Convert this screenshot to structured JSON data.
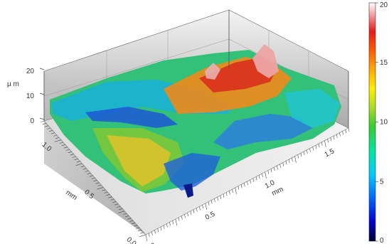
{
  "chart_data": {
    "type": "heatmap",
    "subtype": "3d-surface-topography",
    "title": "",
    "x_axis": {
      "label": "mm",
      "ticks": [
        "0.0",
        "0.5",
        "1.0",
        "1.5"
      ],
      "range": [
        0,
        1.7
      ]
    },
    "y_axis": {
      "label": "mm",
      "ticks": [
        "0.0",
        "0.5",
        "1.0"
      ],
      "range": [
        0,
        1.2
      ]
    },
    "z_axis": {
      "label": "µ m",
      "ticks": [
        "0",
        "10",
        "20"
      ],
      "range": [
        0,
        20
      ]
    },
    "colorbar": {
      "ticks": [
        "0",
        "5",
        "10",
        "15",
        "20"
      ],
      "range": [
        0,
        20
      ],
      "colormap": [
        "#000033",
        "#0000cc",
        "#0066ff",
        "#00ccff",
        "#00e6a0",
        "#33cc33",
        "#aadd22",
        "#ffee00",
        "#ffaa00",
        "#ff5a00",
        "#e61a1a",
        "#f2a0a0",
        "#ffffff"
      ]
    },
    "grid": true,
    "surface_description_values": {
      "baseline_um": 7,
      "max_um": 19,
      "min_um": 1
    }
  }
}
